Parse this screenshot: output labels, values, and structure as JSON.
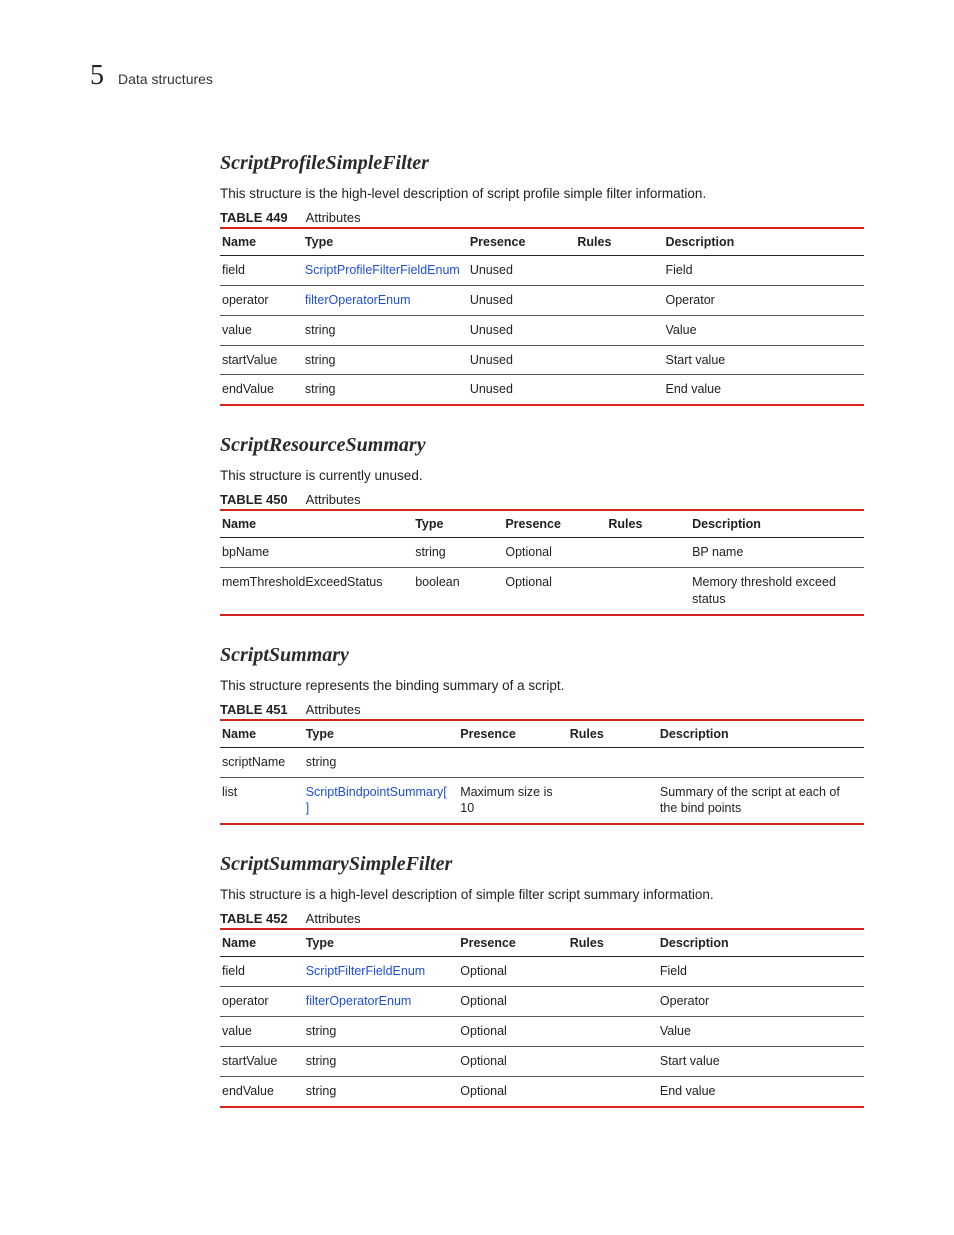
{
  "header": {
    "chapter": "5",
    "title": "Data structures"
  },
  "common": {
    "headers": {
      "name": "Name",
      "type": "Type",
      "presence": "Presence",
      "rules": "Rules",
      "description": "Description"
    },
    "tableWord": "TABLE",
    "attributes": "Attributes"
  },
  "sections": [
    {
      "title": "ScriptProfileSimpleFilter",
      "desc": "This structure is the high-level description of script profile simple filter information.",
      "tableNum": "449",
      "tableClass": "t449",
      "rows": [
        {
          "name": "field",
          "type": "ScriptProfileFilterFieldEnum",
          "typeLink": true,
          "presence": "Unused",
          "rules": "",
          "desc": "Field"
        },
        {
          "name": "operator",
          "type": "filterOperatorEnum",
          "typeLink": true,
          "presence": "Unused",
          "rules": "",
          "desc": "Operator"
        },
        {
          "name": "value",
          "type": "string",
          "typeLink": false,
          "presence": "Unused",
          "rules": "",
          "desc": "Value"
        },
        {
          "name": "startValue",
          "type": "string",
          "typeLink": false,
          "presence": "Unused",
          "rules": "",
          "desc": "Start value"
        },
        {
          "name": "endValue",
          "type": "string",
          "typeLink": false,
          "presence": "Unused",
          "rules": "",
          "desc": "End value"
        }
      ]
    },
    {
      "title": "ScriptResourceSummary",
      "desc": "This structure is currently unused.",
      "tableNum": "450",
      "tableClass": "t450",
      "rows": [
        {
          "name": "bpName",
          "type": "string",
          "typeLink": false,
          "presence": "Optional",
          "rules": "",
          "desc": "BP name"
        },
        {
          "name": "memThresholdExceedStatus",
          "type": "boolean",
          "typeLink": false,
          "presence": "Optional",
          "rules": "",
          "desc": "Memory threshold exceed status"
        }
      ]
    },
    {
      "title": "ScriptSummary",
      "desc": "This structure represents the binding summary of a script.",
      "tableNum": "451",
      "tableClass": "t451",
      "rows": [
        {
          "name": "scriptName",
          "type": "string",
          "typeLink": false,
          "presence": "",
          "rules": "",
          "desc": ""
        },
        {
          "name": "list",
          "type": "ScriptBindpointSummary[ ]",
          "typeLink": true,
          "presence": "Maximum size is 10",
          "rules": "",
          "desc": "Summary of the script at each of the bind points"
        }
      ]
    },
    {
      "title": "ScriptSummarySimpleFilter",
      "desc": "This structure is a high-level description of simple filter script summary information.",
      "tableNum": "452",
      "tableClass": "t452",
      "rows": [
        {
          "name": "field",
          "type": "ScriptFilterFieldEnum",
          "typeLink": true,
          "presence": "Optional",
          "rules": "",
          "desc": "Field"
        },
        {
          "name": "operator",
          "type": "filterOperatorEnum",
          "typeLink": true,
          "presence": "Optional",
          "rules": "",
          "desc": "Operator"
        },
        {
          "name": "value",
          "type": "string",
          "typeLink": false,
          "presence": "Optional",
          "rules": "",
          "desc": "Value"
        },
        {
          "name": "startValue",
          "type": "string",
          "typeLink": false,
          "presence": "Optional",
          "rules": "",
          "desc": "Start value"
        },
        {
          "name": "endValue",
          "type": "string",
          "typeLink": false,
          "presence": "Optional",
          "rules": "",
          "desc": "End value"
        }
      ]
    }
  ]
}
